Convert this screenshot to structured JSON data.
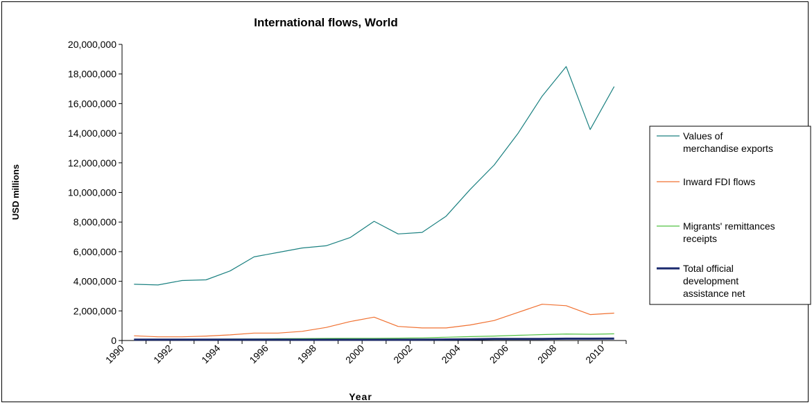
{
  "chart_data": {
    "type": "line",
    "title": "International flows, World",
    "xlabel": "Year",
    "ylabel": "USD millions",
    "x": [
      1990,
      1991,
      1992,
      1993,
      1994,
      1995,
      1996,
      1997,
      1998,
      1999,
      2000,
      2001,
      2002,
      2003,
      2004,
      2005,
      2006,
      2007,
      2008,
      2009,
      2010
    ],
    "x_tick_labels": [
      "1990",
      "1992",
      "1994",
      "1996",
      "1998",
      "2000",
      "2002",
      "2004",
      "2006",
      "2008",
      "2010"
    ],
    "ylim": [
      0,
      20000000
    ],
    "y_tick_labels": [
      "0",
      "2,000,000",
      "4,000,000",
      "6,000,000",
      "8,000,000",
      "10,000,000",
      "12,000,000",
      "14,000,000",
      "16,000,000",
      "18,000,000",
      "20,000,000"
    ],
    "grid": false,
    "legend_position": "right",
    "series": [
      {
        "name": "Values of merchandise exports",
        "name_lines": [
          "Values of",
          "merchandise exports"
        ],
        "color": "#1a8080",
        "values": [
          3800000,
          3750000,
          4050000,
          4100000,
          4700000,
          5650000,
          5950000,
          6250000,
          6400000,
          6950000,
          8050000,
          7200000,
          7300000,
          8400000,
          10200000,
          11850000,
          14000000,
          16500000,
          18500000,
          14250000,
          17150000
        ]
      },
      {
        "name": "Inward FDI flows",
        "name_lines": [
          "Inward FDI flows"
        ],
        "color": "#f07030",
        "values": [
          320000,
          250000,
          250000,
          300000,
          380000,
          500000,
          500000,
          620000,
          880000,
          1280000,
          1580000,
          950000,
          850000,
          850000,
          1050000,
          1350000,
          1900000,
          2450000,
          2350000,
          1750000,
          1850000
        ]
      },
      {
        "name": "Migrants' remittances receipts",
        "name_lines": [
          "Migrants' remittances",
          "receipts"
        ],
        "color": "#4fc040",
        "values": [
          60000,
          70000,
          80000,
          90000,
          100000,
          110000,
          120000,
          130000,
          140000,
          150000,
          150000,
          160000,
          180000,
          220000,
          260000,
          300000,
          350000,
          400000,
          440000,
          420000,
          450000
        ]
      },
      {
        "name": "Total official development assistance net",
        "name_lines": [
          "Total official",
          "development",
          "assistance net"
        ],
        "color": "#1a2a6e",
        "values": [
          55000,
          58000,
          60000,
          58000,
          60000,
          58000,
          55000,
          50000,
          52000,
          52000,
          50000,
          52000,
          58000,
          68000,
          78000,
          105000,
          105000,
          105000,
          122000,
          120000,
          128000
        ]
      }
    ]
  }
}
